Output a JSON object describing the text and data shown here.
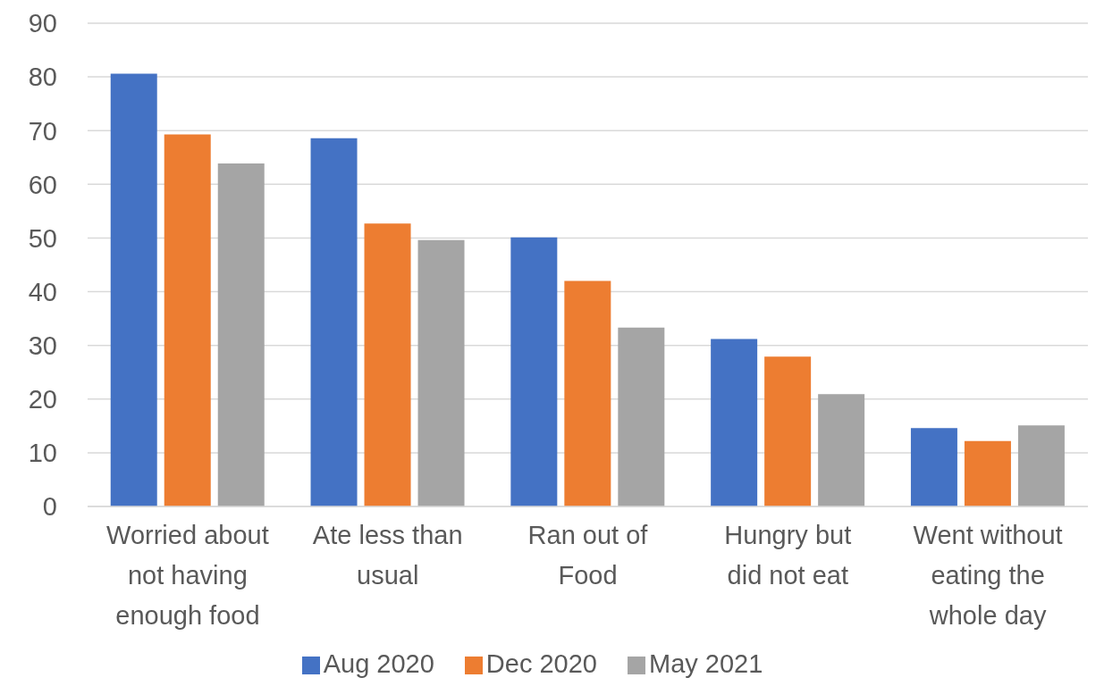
{
  "chart_data": {
    "type": "bar",
    "categories": [
      "Worried about not having enough food",
      "Ate less than usual",
      "Ran out of Food",
      "Hungry but did not eat",
      "Went without eating the whole day"
    ],
    "series": [
      {
        "name": "Aug 2020",
        "color": "#4472c4",
        "values": [
          80.6,
          68.6,
          50.1,
          31.2,
          14.6
        ]
      },
      {
        "name": "Dec 2020",
        "color": "#ed7d31",
        "values": [
          69.3,
          52.7,
          42.0,
          27.9,
          12.2
        ]
      },
      {
        "name": "May 2021",
        "color": "#a5a5a5",
        "values": [
          63.9,
          49.6,
          33.3,
          20.9,
          15.1
        ]
      }
    ],
    "ylim": [
      0,
      90
    ],
    "yticks": [
      0,
      10,
      20,
      30,
      40,
      50,
      60,
      70,
      80,
      90
    ],
    "grid": "y",
    "legend": "bottom"
  }
}
